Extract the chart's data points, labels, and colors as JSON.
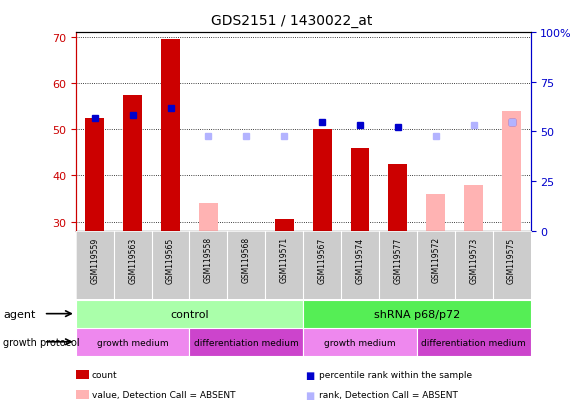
{
  "title": "GDS2151 / 1430022_at",
  "samples": [
    "GSM119559",
    "GSM119563",
    "GSM119565",
    "GSM119558",
    "GSM119568",
    "GSM119571",
    "GSM119567",
    "GSM119574",
    "GSM119577",
    "GSM119572",
    "GSM119573",
    "GSM119575"
  ],
  "count_values": [
    52.5,
    57.5,
    69.5,
    null,
    null,
    30.5,
    50.0,
    46.0,
    42.5,
    null,
    null,
    null
  ],
  "count_absent_values": [
    null,
    null,
    null,
    34.0,
    null,
    null,
    null,
    null,
    null,
    36.0,
    38.0,
    54.0
  ],
  "percentile_present": [
    52.5,
    53.0,
    54.5,
    null,
    null,
    null,
    51.5,
    51.0,
    50.5,
    null,
    null,
    51.5
  ],
  "percentile_absent": [
    null,
    null,
    null,
    48.5,
    48.5,
    48.5,
    null,
    null,
    null,
    48.5,
    51.0,
    51.5
  ],
  "ylim_left": [
    28,
    71
  ],
  "ylim_right": [
    0,
    100
  ],
  "yticks_left": [
    30,
    40,
    50,
    60,
    70
  ],
  "yticks_right": [
    0,
    25,
    50,
    75,
    100
  ],
  "ytick_labels_right": [
    "0",
    "25",
    "50",
    "75",
    "100%"
  ],
  "bar_color_present": "#cc0000",
  "bar_color_absent": "#ffb3b3",
  "dot_color_present": "#0000cc",
  "dot_color_absent": "#b3b3ff",
  "bar_width": 0.5,
  "agent_groups": [
    {
      "label": "control",
      "start": 0,
      "end": 6,
      "color": "#aaffaa"
    },
    {
      "label": "shRNA p68/p72",
      "start": 6,
      "end": 12,
      "color": "#55ee55"
    }
  ],
  "growth_protocol_groups": [
    {
      "label": "growth medium",
      "start": 0,
      "end": 3,
      "color": "#ee88ee"
    },
    {
      "label": "differentiation medium",
      "start": 3,
      "end": 6,
      "color": "#cc44cc"
    },
    {
      "label": "growth medium",
      "start": 6,
      "end": 9,
      "color": "#ee88ee"
    },
    {
      "label": "differentiation medium",
      "start": 9,
      "end": 12,
      "color": "#cc44cc"
    }
  ],
  "legend_items": [
    {
      "label": "count",
      "color": "#cc0000",
      "type": "bar"
    },
    {
      "label": "percentile rank within the sample",
      "color": "#0000cc",
      "type": "dot"
    },
    {
      "label": "value, Detection Call = ABSENT",
      "color": "#ffb3b3",
      "type": "bar"
    },
    {
      "label": "rank, Detection Call = ABSENT",
      "color": "#b3b3ff",
      "type": "dot"
    }
  ],
  "agent_label": "agent",
  "growth_label": "growth protocol",
  "left_axis_color": "#cc0000",
  "right_axis_color": "#0000cc",
  "sample_box_color": "#cccccc",
  "grid_color": "#333333"
}
